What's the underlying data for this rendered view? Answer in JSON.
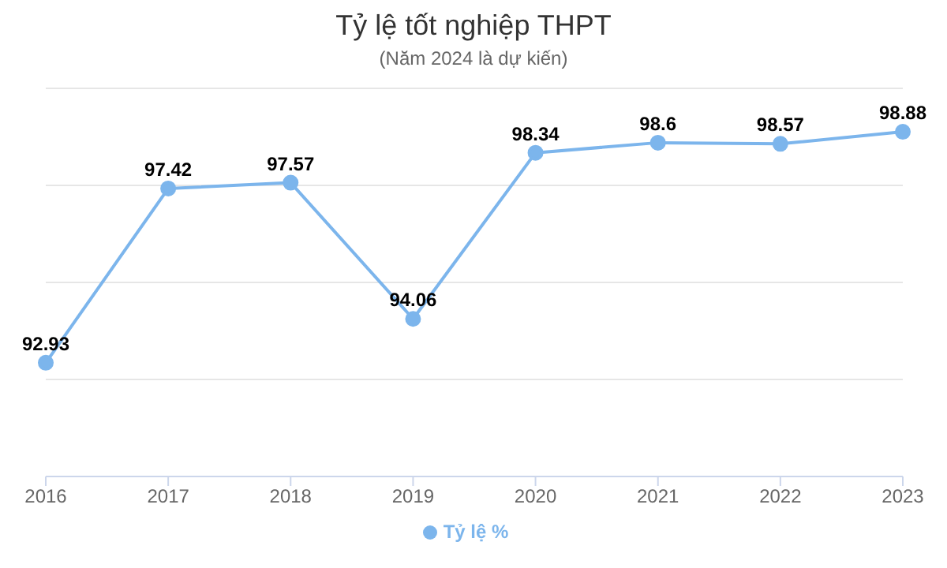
{
  "chart_data": {
    "type": "line",
    "title": "Tỷ lệ tốt nghiệp THPT",
    "subtitle": "(Năm 2024 là dự kiến)",
    "categories": [
      "2016",
      "2017",
      "2018",
      "2019",
      "2020",
      "2021",
      "2022",
      "2023"
    ],
    "series": [
      {
        "name": "Tỷ lệ %",
        "color": "#7cb5ec",
        "values": [
          92.93,
          97.42,
          97.57,
          94.06,
          98.34,
          98.6,
          98.57,
          98.88
        ]
      }
    ],
    "ylim": [
      90,
      100
    ],
    "yticks": [
      {
        "value": 90,
        "label": null
      },
      {
        "value": 92.5,
        "label": null
      },
      {
        "value": 95,
        "label": null
      },
      {
        "value": 97.5,
        "label": null
      },
      {
        "value": 100,
        "label": null
      }
    ],
    "tick_labels": "x",
    "grid": "y",
    "legend": "bottom",
    "marker": "circle",
    "line_style": "solid",
    "data_labels": true
  }
}
